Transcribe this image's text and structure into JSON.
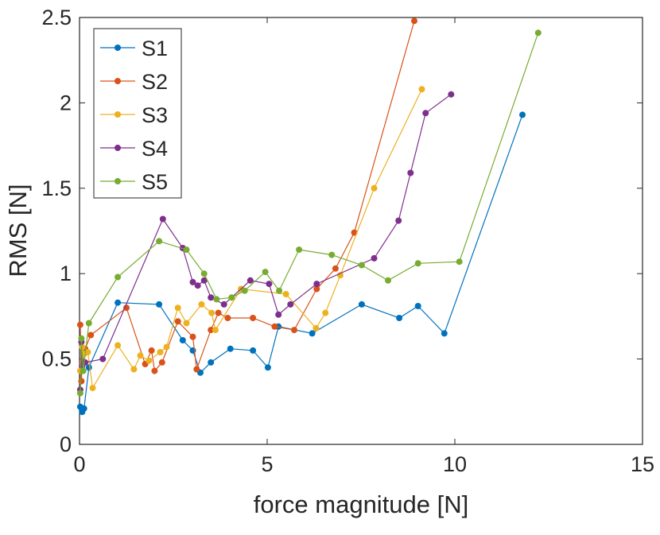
{
  "chart_data": {
    "type": "line",
    "title": "",
    "xlabel": "force magnitude [N]",
    "ylabel": "RMS [N]",
    "xlim": [
      0,
      15
    ],
    "ylim": [
      0,
      2.5
    ],
    "xticks": [
      0,
      5,
      10,
      15
    ],
    "yticks": [
      0,
      0.5,
      1,
      1.5,
      2,
      2.5
    ],
    "xtick_labels": [
      "0",
      "5",
      "10",
      "15"
    ],
    "ytick_labels": [
      "0",
      "0.5",
      "1",
      "1.5",
      "2",
      "2.5"
    ],
    "grid": false,
    "legend_position": "top-left",
    "series": [
      {
        "name": "S1",
        "color": "#0072BD",
        "x": [
          0.02,
          0.07,
          0.12,
          0.25,
          1.02,
          2.12,
          2.75,
          3.02,
          3.22,
          3.5,
          4.02,
          4.62,
          5.02,
          5.3,
          6.2,
          7.52,
          8.52,
          9.02,
          9.72,
          11.8
        ],
        "y": [
          0.22,
          0.19,
          0.21,
          0.45,
          0.83,
          0.82,
          0.61,
          0.55,
          0.42,
          0.48,
          0.56,
          0.55,
          0.45,
          0.69,
          0.65,
          0.82,
          0.74,
          0.81,
          0.65,
          1.93
        ]
      },
      {
        "name": "S2",
        "color": "#D95319",
        "x": [
          0.02,
          0.05,
          0.07,
          0.15,
          0.3,
          1.25,
          1.75,
          1.92,
          2.0,
          2.2,
          2.62,
          3.02,
          3.12,
          3.5,
          3.7,
          3.95,
          4.62,
          5.2,
          5.72,
          6.32,
          6.82,
          7.32,
          8.92
        ],
        "y": [
          0.7,
          0.37,
          0.47,
          0.56,
          0.64,
          0.8,
          0.47,
          0.55,
          0.43,
          0.48,
          0.72,
          0.63,
          0.44,
          0.67,
          0.77,
          0.74,
          0.74,
          0.69,
          0.67,
          0.91,
          1.03,
          1.24,
          2.48
        ]
      },
      {
        "name": "S3",
        "color": "#EDB120",
        "x": [
          0.02,
          0.07,
          0.12,
          0.22,
          0.35,
          1.02,
          1.45,
          1.62,
          1.85,
          2.15,
          2.32,
          2.62,
          2.85,
          3.25,
          3.52,
          3.62,
          4.3,
          5.5,
          6.3,
          6.55,
          6.95,
          7.85,
          9.12
        ],
        "y": [
          0.43,
          0.57,
          0.53,
          0.54,
          0.33,
          0.58,
          0.44,
          0.52,
          0.49,
          0.54,
          0.57,
          0.8,
          0.71,
          0.82,
          0.77,
          0.67,
          0.91,
          0.88,
          0.68,
          0.77,
          0.99,
          1.5,
          2.08
        ]
      },
      {
        "name": "S4",
        "color": "#7E2F8E",
        "x": [
          0.02,
          0.05,
          0.07,
          0.15,
          0.62,
          2.22,
          2.75,
          3.02,
          3.15,
          3.32,
          3.5,
          3.85,
          4.55,
          5.05,
          5.3,
          5.62,
          6.32,
          7.85,
          8.5,
          8.82,
          9.22,
          9.9
        ],
        "y": [
          0.32,
          0.6,
          0.46,
          0.48,
          0.5,
          1.32,
          1.15,
          0.95,
          0.93,
          0.96,
          0.86,
          0.82,
          0.96,
          0.94,
          0.76,
          0.82,
          0.94,
          1.09,
          1.31,
          1.59,
          1.94,
          2.05
        ]
      },
      {
        "name": "S5",
        "color": "#77AC30",
        "x": [
          0.02,
          0.05,
          0.1,
          0.25,
          1.02,
          2.12,
          2.85,
          3.32,
          3.65,
          4.05,
          4.4,
          4.95,
          5.32,
          5.85,
          6.72,
          7.52,
          8.22,
          9.02,
          10.12,
          12.22
        ],
        "y": [
          0.3,
          0.62,
          0.43,
          0.71,
          0.98,
          1.19,
          1.14,
          1.0,
          0.85,
          0.86,
          0.9,
          1.01,
          0.9,
          1.14,
          1.11,
          1.05,
          0.96,
          1.06,
          1.07,
          2.41
        ]
      }
    ]
  }
}
